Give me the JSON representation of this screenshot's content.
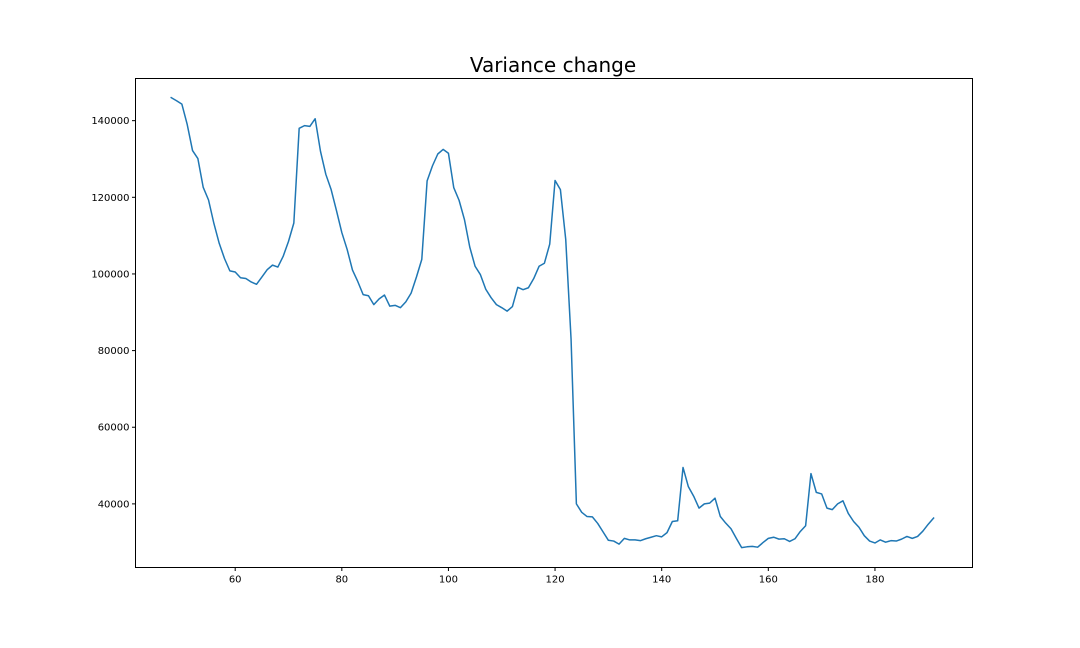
{
  "chart_data": {
    "type": "line",
    "title": "Variance change",
    "xlabel": "",
    "ylabel": "",
    "xlim": [
      41.3,
      198.3
    ],
    "ylim": [
      23400,
      151000
    ],
    "xticks": [
      60,
      80,
      100,
      120,
      140,
      160,
      180
    ],
    "xtick_labels": [
      "60",
      "80",
      "100",
      "120",
      "140",
      "160",
      "180"
    ],
    "yticks": [
      40000,
      60000,
      80000,
      100000,
      120000,
      140000
    ],
    "ytick_labels": [
      "40000",
      "60000",
      "80000",
      "100000",
      "120000",
      "140000"
    ],
    "grid": false,
    "legend": "none",
    "series": [
      {
        "color": "#1f77b4",
        "x": [
          48,
          49,
          50,
          51,
          52,
          53,
          54,
          55,
          56,
          57,
          58,
          59,
          60,
          61,
          62,
          63,
          64,
          65,
          66,
          67,
          68,
          69,
          70,
          71,
          72,
          73,
          74,
          75,
          76,
          77,
          78,
          79,
          80,
          81,
          82,
          83,
          84,
          85,
          86,
          87,
          88,
          89,
          90,
          91,
          92,
          93,
          94,
          95,
          96,
          97,
          98,
          99,
          100,
          101,
          102,
          103,
          104,
          105,
          106,
          107,
          108,
          109,
          110,
          111,
          112,
          113,
          114,
          115,
          116,
          117,
          118,
          119,
          120,
          121,
          122,
          123,
          124,
          125,
          126,
          127,
          128,
          129,
          130,
          131,
          132,
          133,
          134,
          135,
          136,
          137,
          138,
          139,
          140,
          141,
          142,
          143,
          144,
          145,
          146,
          147,
          148,
          149,
          150,
          151,
          152,
          153,
          154,
          155,
          156,
          157,
          158,
          159,
          160,
          161,
          162,
          163,
          164,
          165,
          166,
          167,
          168,
          169,
          170,
          171,
          172,
          173,
          174,
          175,
          176,
          177,
          178,
          179,
          180,
          181,
          182,
          183,
          184,
          185,
          186,
          187,
          188,
          189,
          190,
          191
        ],
        "y": [
          146000,
          145200,
          144300,
          139000,
          132200,
          130100,
          122600,
          119300,
          113200,
          108000,
          104000,
          100800,
          100500,
          99000,
          98800,
          97900,
          97300,
          99200,
          101100,
          102300,
          101800,
          104600,
          108500,
          113300,
          138000,
          138700,
          138500,
          140500,
          132000,
          126000,
          122000,
          116500,
          110800,
          106400,
          101000,
          98000,
          94600,
          94300,
          92000,
          93500,
          94500,
          91600,
          91800,
          91200,
          92700,
          95000,
          99200,
          103800,
          124300,
          128200,
          131300,
          132500,
          131500,
          122500,
          119200,
          114200,
          107000,
          102000,
          99800,
          96000,
          93800,
          92000,
          91200,
          90300,
          91500,
          96500,
          95900,
          96400,
          98800,
          102000,
          102800,
          107800,
          124400,
          122000,
          109000,
          83000,
          40000,
          37800,
          36700,
          36600,
          34900,
          32700,
          30500,
          30300,
          29500,
          31000,
          30600,
          30600,
          30400,
          30900,
          31300,
          31700,
          31400,
          32500,
          35400,
          35600,
          49500,
          44500,
          42000,
          38900,
          40000,
          40200,
          41500,
          36700,
          35000,
          33500,
          31000,
          28600,
          28800,
          28900,
          28700,
          29900,
          31000,
          31300,
          30800,
          30900,
          30200,
          30900,
          32800,
          34300,
          47900,
          43000,
          42600,
          38900,
          38500,
          40000,
          40800,
          37500,
          35400,
          33900,
          31700,
          30300,
          29800,
          30600,
          30000,
          30400,
          30300,
          30800,
          31500,
          31000,
          31500,
          32900,
          34700,
          36300
        ]
      }
    ]
  }
}
